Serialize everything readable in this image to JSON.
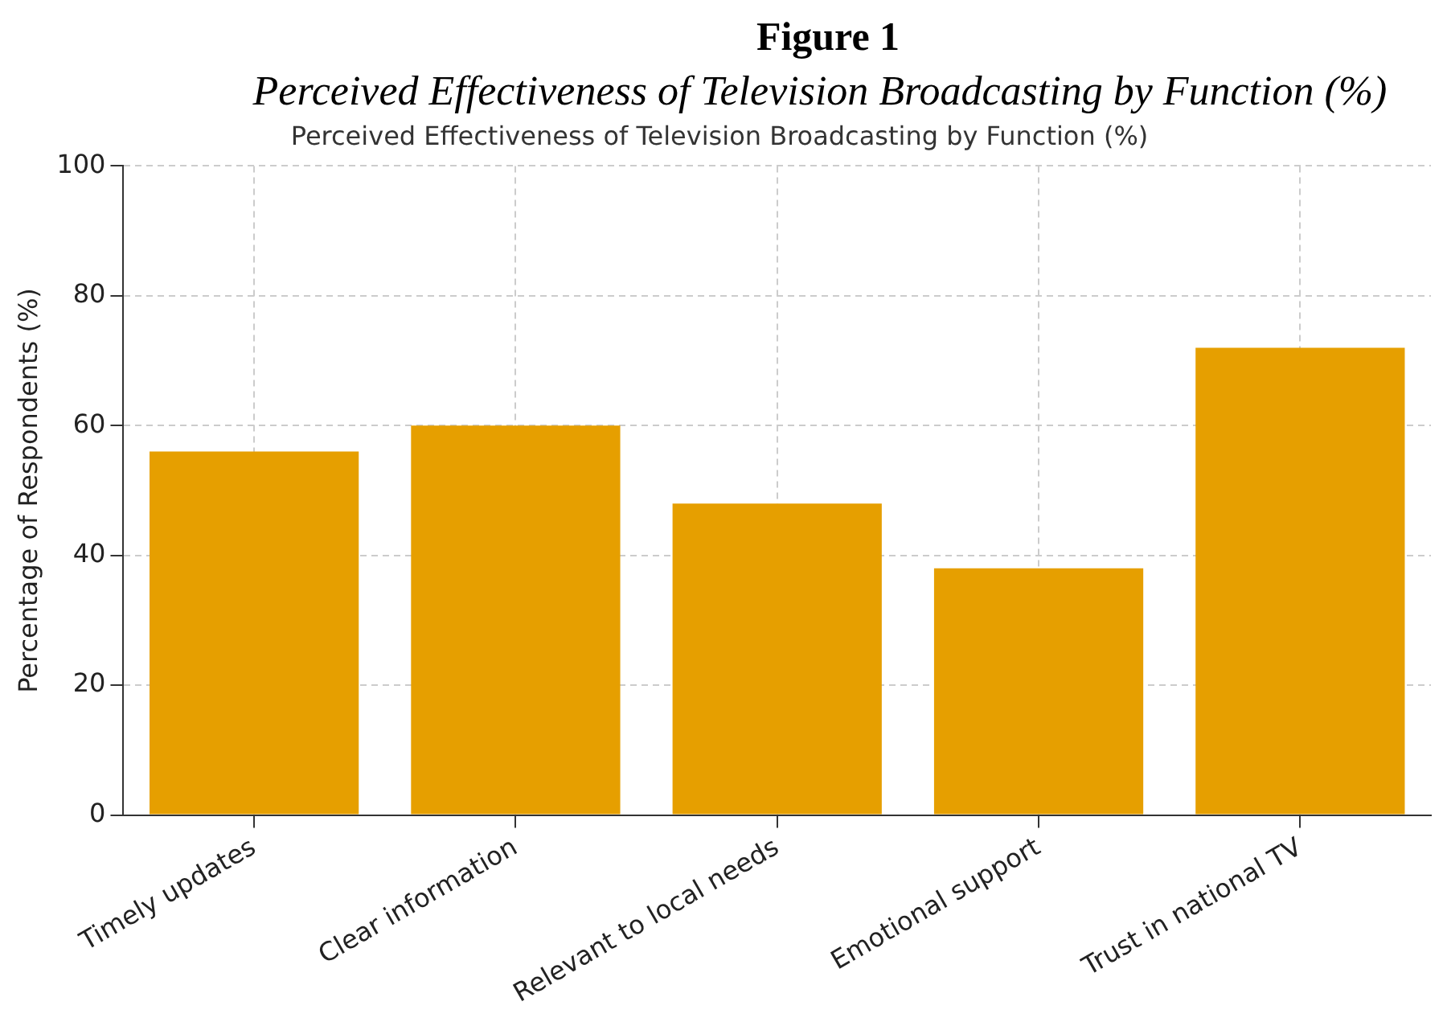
{
  "chart_data": {
    "type": "bar",
    "title": "Figure 1",
    "subtitle": "Perceived Effectiveness of Television Broadcasting by Function (%)",
    "annotations": [
      "Perceived Effectiveness of Television Broadcasting by Function (%)"
    ],
    "ylabel": "Percentage of Respondents (%)",
    "categories": [
      "Timely updates",
      "Clear information",
      "Relevant to local needs",
      "Emotional support",
      "Trust in national TV"
    ],
    "values": [
      56,
      60,
      48,
      38,
      72
    ],
    "color": "#e69f00",
    "ylim": [
      0,
      100
    ],
    "yticks": [
      0,
      20,
      40,
      60,
      80,
      100
    ],
    "grid": true
  }
}
